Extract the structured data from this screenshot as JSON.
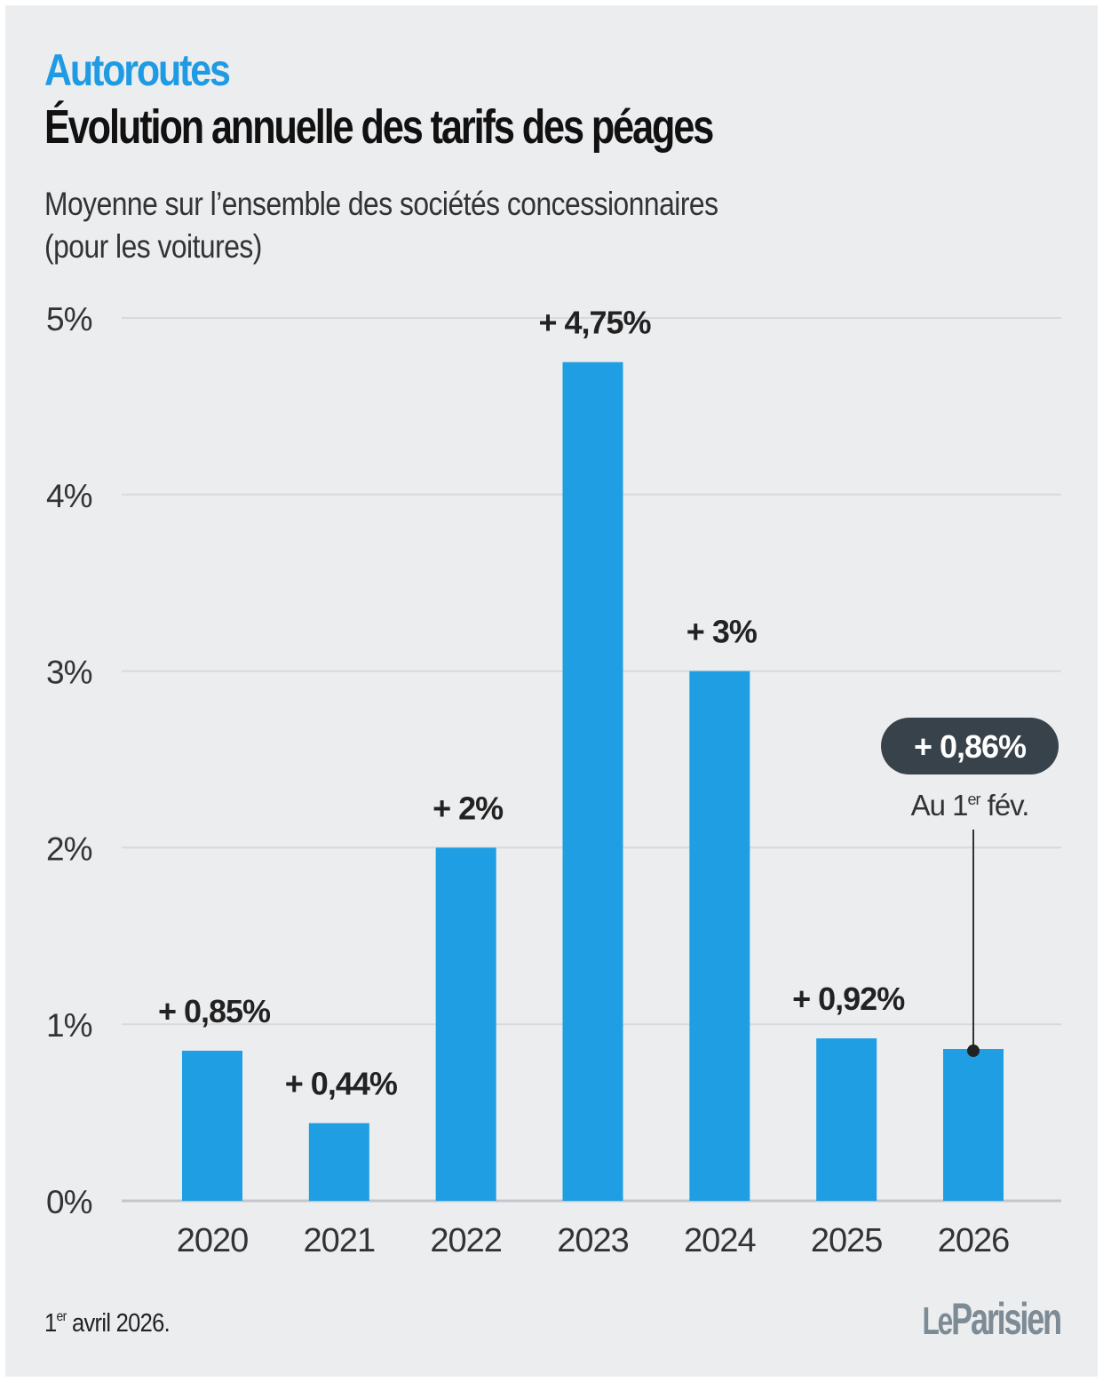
{
  "header": {
    "kicker": "Autoroutes",
    "title": "Évolution annuelle des tarifs des péages",
    "subtitle_line1": "Moyenne sur l’ensemble des sociétés concessionnaires",
    "subtitle_line2": "(pour les voitures)"
  },
  "footer": {
    "date_day": "1",
    "date_sup": "er",
    "date_rest": " avril 2026.",
    "logo_le": "Le",
    "logo_name": "Parisien"
  },
  "colors": {
    "bar": "#1f9ee3",
    "kicker": "#1e9be3",
    "callout_bg": "#37424a",
    "grid": "#d7d9dd",
    "axis": "#c4c6cc",
    "background": "#ecedef"
  },
  "chart_data": {
    "type": "bar",
    "title": "Évolution annuelle des tarifs des péages",
    "subtitle": "Moyenne sur l’ensemble des sociétés concessionnaires (pour les voitures)",
    "xlabel": "",
    "ylabel": "",
    "categories": [
      "2020",
      "2021",
      "2022",
      "2023",
      "2024",
      "2025",
      "2026"
    ],
    "values": [
      0.85,
      0.44,
      2,
      4.75,
      3,
      0.92,
      0.86
    ],
    "data_labels": [
      "+ 0,85%",
      "+ 0,44%",
      "+ 2%",
      "+ 4,75%",
      "+ 3%",
      "+ 0,92%",
      "+ 0,86%"
    ],
    "ylim": [
      0,
      5
    ],
    "yticks": [
      0,
      1,
      2,
      3,
      4,
      5
    ],
    "ytick_labels": [
      "0%",
      "1%",
      "2%",
      "3%",
      "4%",
      "5%"
    ],
    "grid": true,
    "legend": "none",
    "highlight": {
      "category": "2026",
      "label": "+ 0,86%",
      "note_prefix": "Au 1",
      "note_sup": "er",
      "note_suffix": " fév."
    }
  }
}
